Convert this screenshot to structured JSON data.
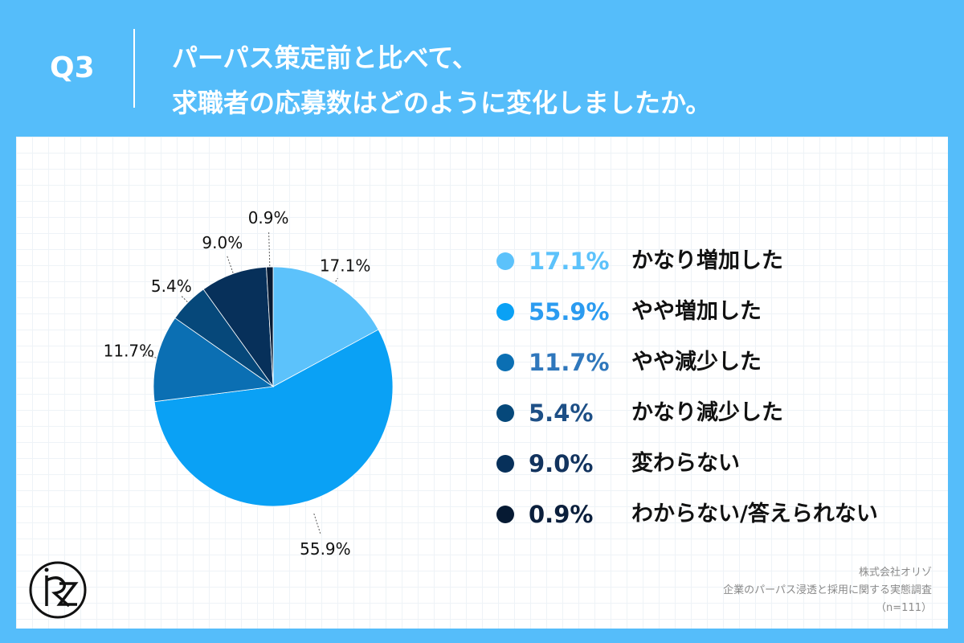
{
  "question": {
    "label": "Q3",
    "line1": "パーパス策定前と比べて、",
    "line2": "求職者の応募数はどのように変化しましたか。"
  },
  "chart_data": {
    "type": "pie",
    "categories": [
      "かなり増加した",
      "やや増加した",
      "やや減少した",
      "かなり減少した",
      "変わらない",
      "わからない/答えられない"
    ],
    "values": [
      17.1,
      55.9,
      11.7,
      5.4,
      9.0,
      0.9
    ],
    "value_labels": [
      "17.1%",
      "55.9%",
      "11.7%",
      "5.4%",
      "9.0%",
      "0.9%"
    ],
    "colors": [
      "#5cc2fb",
      "#0aa1f5",
      "#0b6fb3",
      "#06487a",
      "#07305a",
      "#061a33"
    ],
    "start_angle": "12 o'clock, clockwise"
  },
  "legend": {
    "pct_colors": [
      "#5cc2fb",
      "#2b9bf0",
      "#2f77bc",
      "#1d4f86",
      "#12335e",
      "#0b1f3c"
    ]
  },
  "source": {
    "company": "株式会社オリゾ",
    "survey": "企業のパーパス浸透と採用に関する実態調査",
    "n": "（n=111）"
  }
}
